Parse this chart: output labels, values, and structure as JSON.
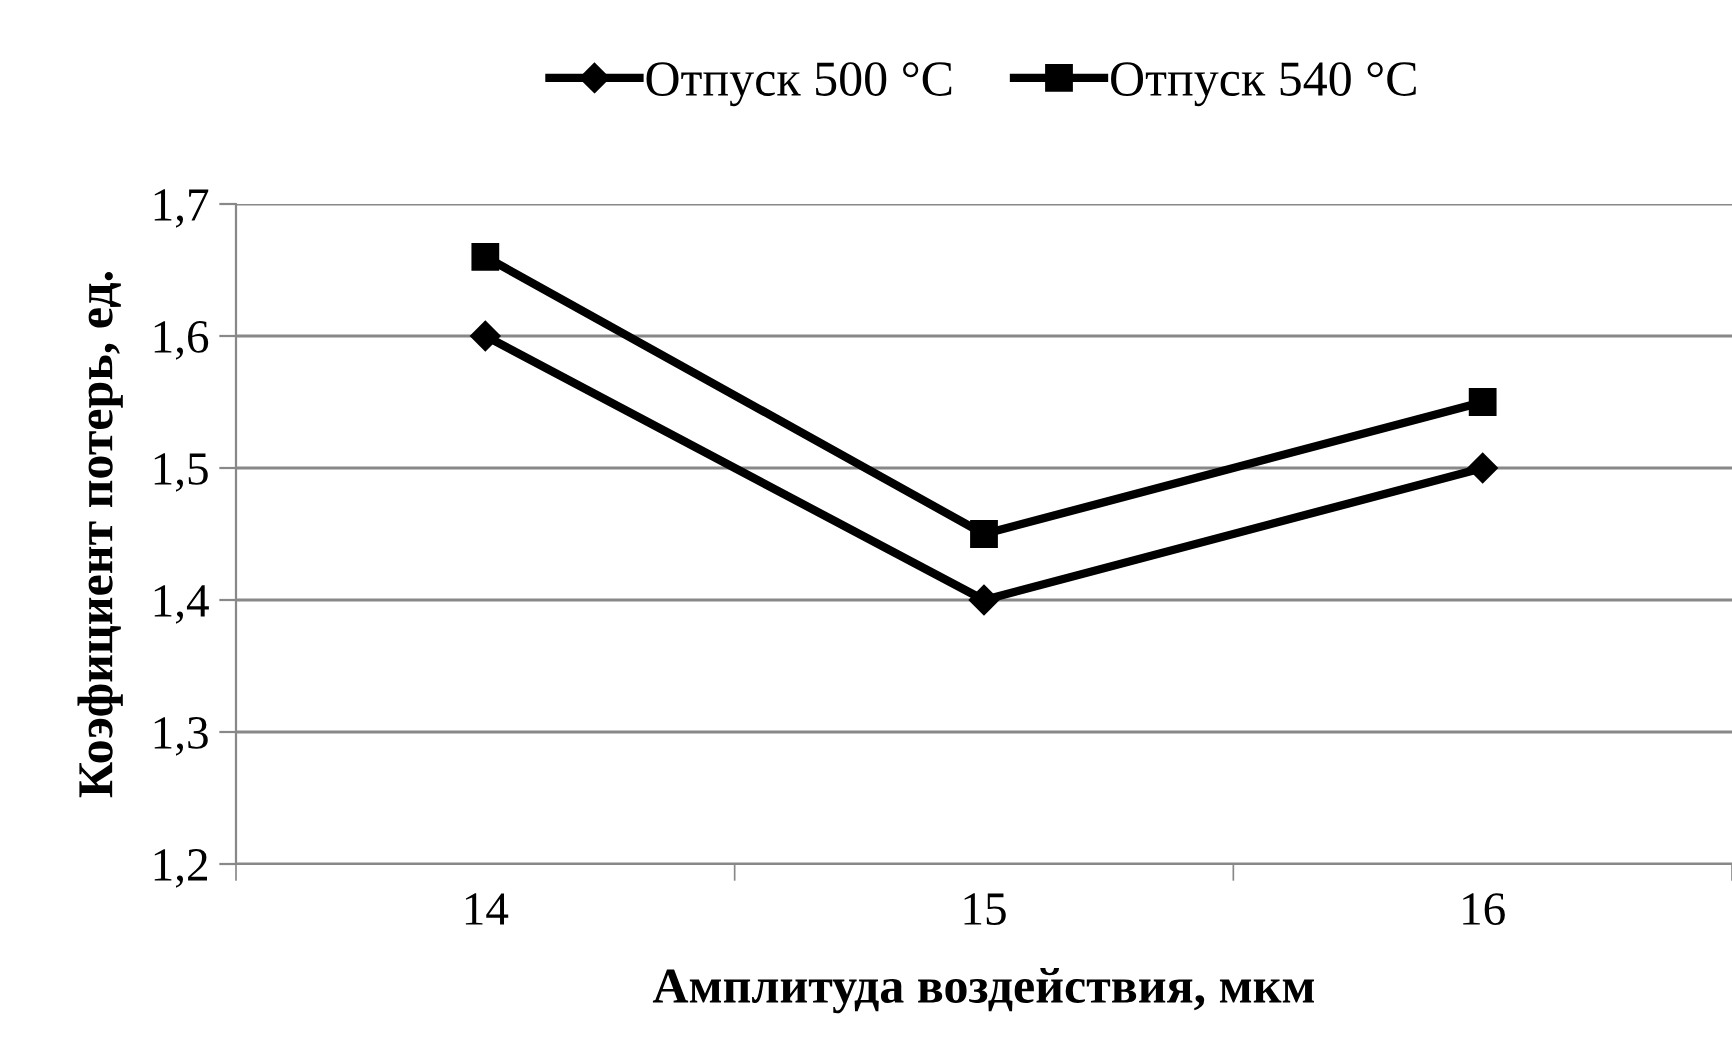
{
  "chart_data": {
    "type": "line",
    "xlabel": "Амплитуда воздействия, мкм",
    "ylabel": "Коэфициент потерь, ед.",
    "categories": [
      "14",
      "15",
      "16"
    ],
    "series": [
      {
        "name": "Отпуск 500 °C",
        "color": "#000000",
        "marker": "diamond",
        "values": [
          1.6,
          1.4,
          1.5
        ]
      },
      {
        "name": "Отпуск 540 °C",
        "color": "#000000",
        "marker": "square",
        "values": [
          1.66,
          1.45,
          1.55
        ]
      }
    ],
    "ylim": [
      1.2,
      1.7
    ],
    "yticks": [
      {
        "value": 1.2,
        "label": "1,2"
      },
      {
        "value": 1.3,
        "label": "1,3"
      },
      {
        "value": 1.4,
        "label": "1,4"
      },
      {
        "value": 1.5,
        "label": "1,5"
      },
      {
        "value": 1.6,
        "label": "1,6"
      },
      {
        "value": 1.7,
        "label": "1,7"
      }
    ],
    "grid": "y",
    "legend": "top",
    "line_style": "solid"
  }
}
